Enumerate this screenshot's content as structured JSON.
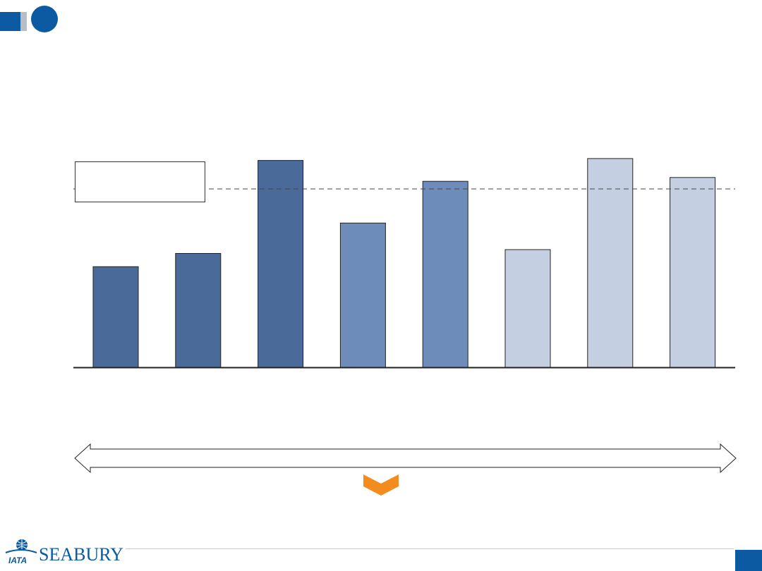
{
  "chart_data": {
    "type": "bar",
    "categories": [
      "",
      "",
      "",
      "",
      "",
      "",
      "",
      ""
    ],
    "values": [
      53,
      60,
      109,
      76,
      98,
      62,
      110,
      100
    ],
    "colors": [
      "#4a6a9a",
      "#4a6a9a",
      "#4a6a9a",
      "#6e8cba",
      "#6e8cba",
      "#c4cfe1",
      "#c4cfe1",
      "#c4cfe1"
    ],
    "reference_line": 94,
    "ylim": [
      0,
      120
    ],
    "title": "",
    "xlabel": "",
    "ylabel": "",
    "grid": false,
    "legend_box": "top-left"
  },
  "colors": {
    "accent": "#0b5aa2",
    "arrow_down": "#f28c1e"
  },
  "footer": {
    "logo_text": "SEABURY",
    "logo_sub": "IATA",
    "page_number": ""
  }
}
